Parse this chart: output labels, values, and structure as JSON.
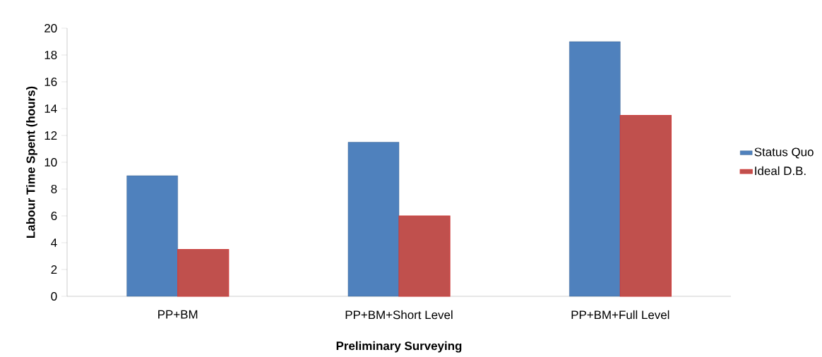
{
  "chart_data": {
    "type": "bar",
    "xlabel": "Preliminary Surveying",
    "ylabel": "Labour Time Spent (hours)",
    "categories": [
      "PP+BM",
      "PP+BM+Short Level",
      "PP+BM+Full Level"
    ],
    "series": [
      {
        "name": "Status Quo",
        "color": "#4f81bd",
        "values": [
          9,
          11.5,
          19
        ]
      },
      {
        "name": "Ideal D.B.",
        "color": "#c0504d",
        "values": [
          3.5,
          6,
          13.5
        ]
      }
    ],
    "ylim": [
      0,
      20
    ],
    "yticks": [
      0,
      2,
      4,
      6,
      8,
      10,
      12,
      14,
      16,
      18,
      20
    ],
    "legend": "right"
  }
}
